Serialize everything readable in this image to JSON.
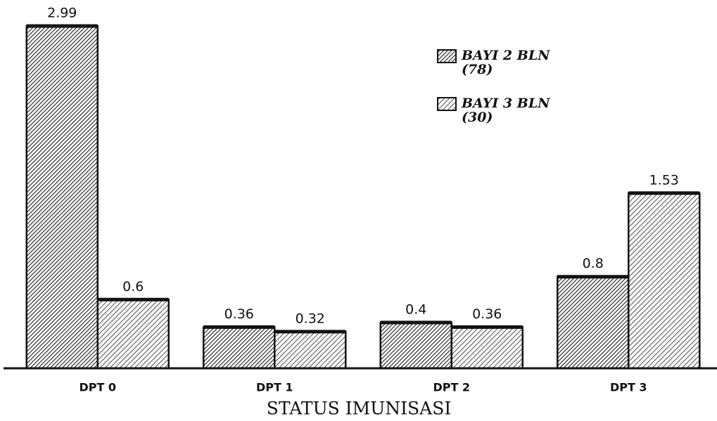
{
  "chart_data": {
    "type": "bar",
    "xlabel": "STATUS IMUNISASI",
    "categories": [
      "DPT 0",
      "DPT 1",
      "DPT 2",
      "DPT 3"
    ],
    "series": [
      {
        "name": "BAYI 2 BLN (78)",
        "color": "#3a3a3a",
        "values": [
          2.99,
          0.36,
          0.4,
          0.8
        ]
      },
      {
        "name": "BAYI 3 BLN (30)",
        "color": "#5a5a5a",
        "values": [
          0.6,
          0.32,
          0.36,
          1.53
        ]
      }
    ]
  }
}
